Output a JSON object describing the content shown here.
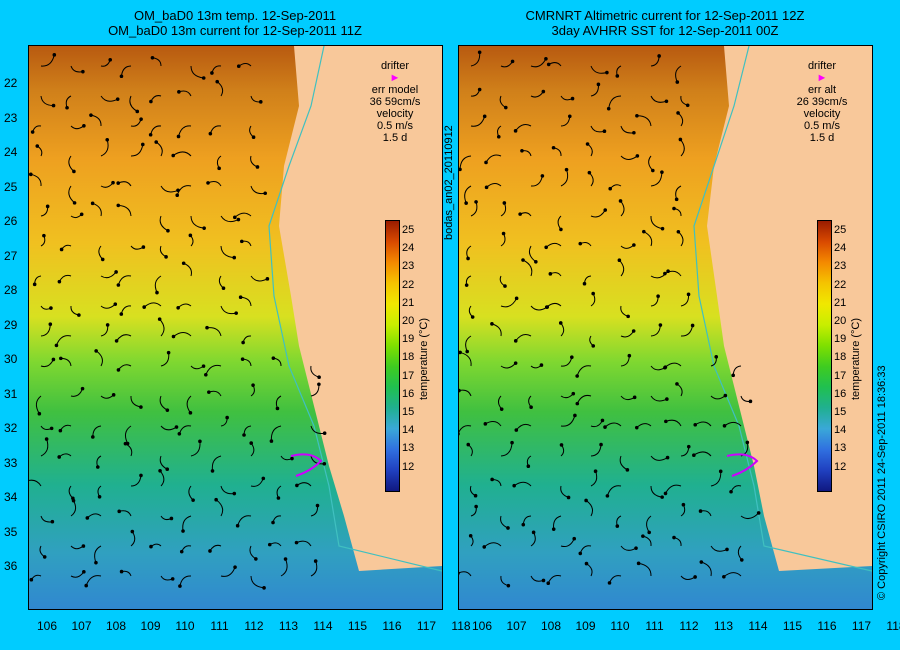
{
  "left_title": {
    "line1": "OM_baD0 13m temp. 12-Sep-2011",
    "line2": "OM_baD0 13m current for 12-Sep-2011 11Z"
  },
  "right_title": {
    "line1": "CMRNRT Altimetric current for 12-Sep-2011 12Z",
    "line2": "3day AVHRR SST for 12-Sep-2011 00Z"
  },
  "left_legend": {
    "drifter": "drifter",
    "err": "err model",
    "err_val": "36 59cm/s",
    "velocity": "velocity",
    "vel_val": "0.5 m/s",
    "days": "1.5 d"
  },
  "right_legend": {
    "drifter": "drifter",
    "err": "err alt",
    "err_val": "26 39cm/s",
    "velocity": "velocity",
    "vel_val": "0.5 m/s",
    "days": "1.5 d"
  },
  "colorbar": {
    "label": "temperature (°C)",
    "ticks": [
      "25",
      "24",
      "23",
      "22",
      "21",
      "20",
      "19",
      "18",
      "17",
      "16",
      "15",
      "14",
      "13",
      "12"
    ]
  },
  "latitudes": [
    "22",
    "23",
    "24",
    "25",
    "26",
    "27",
    "28",
    "29",
    "30",
    "31",
    "32",
    "33",
    "34",
    "35",
    "36"
  ],
  "longitudes": [
    "106",
    "107",
    "108",
    "109",
    "110",
    "111",
    "112",
    "113",
    "114",
    "115",
    "116",
    "117",
    "118"
  ],
  "side_label": "bodas_an02_20110912",
  "copyright": "© Copyright CSIRO 2011   24-Sep-2011 18:36:33",
  "colors": {
    "background": "#00ccff",
    "land": "#f8c89a",
    "drifter": "#ff00ff"
  }
}
